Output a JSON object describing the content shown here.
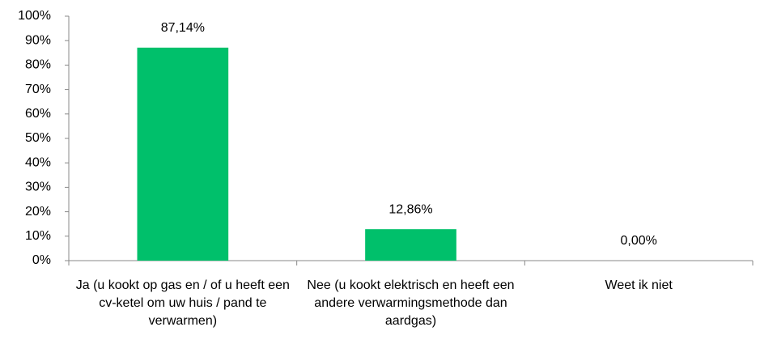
{
  "chart_data": {
    "type": "bar",
    "categories": [
      "Ja (u kookt op gas en / of u heeft een cv-ketel om uw huis / pand te verwarmen)",
      "Nee (u kookt elektrisch en heeft een andere verwarmingsmethode dan aardgas)",
      "Weet ik niet"
    ],
    "values": [
      87.14,
      12.86,
      0
    ],
    "value_labels": [
      "87,14%",
      "12,86%",
      "0,00%"
    ],
    "color": "#00c06b",
    "ylim": [
      0,
      100
    ],
    "yticks": [
      {
        "value": 0,
        "label": "0%"
      },
      {
        "value": 10,
        "label": "10%"
      },
      {
        "value": 20,
        "label": "20%"
      },
      {
        "value": 30,
        "label": "30%"
      },
      {
        "value": 40,
        "label": "40%"
      },
      {
        "value": 50,
        "label": "50%"
      },
      {
        "value": 60,
        "label": "60%"
      },
      {
        "value": 70,
        "label": "70%"
      },
      {
        "value": 80,
        "label": "80%"
      },
      {
        "value": 90,
        "label": "90%"
      },
      {
        "value": 100,
        "label": "100%"
      }
    ],
    "grid": false
  }
}
